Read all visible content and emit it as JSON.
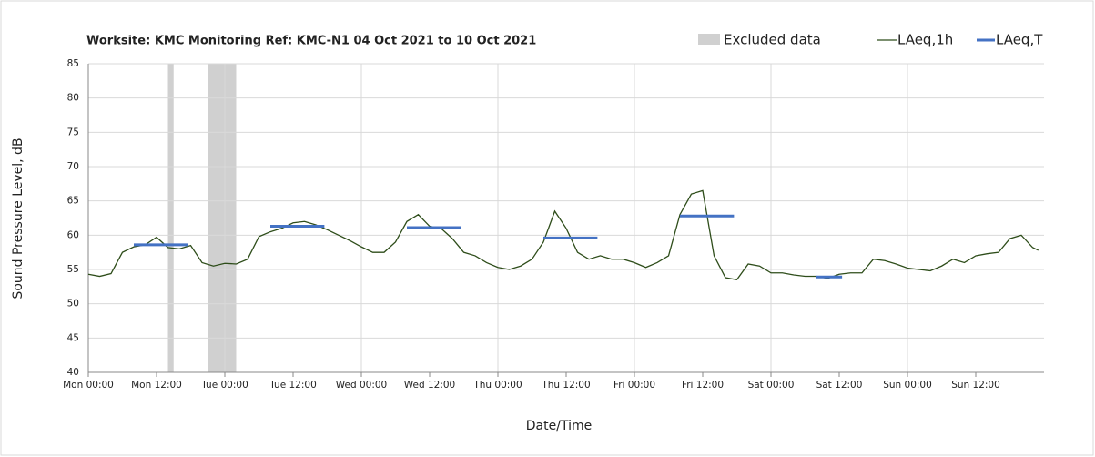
{
  "chart_data": {
    "type": "line",
    "title": "Worksite: KMC    Monitoring Ref: KMC-N1      04 Oct 2021 to 10 Oct 2021",
    "x_label": "Date/Time",
    "y_label": "Sound Pressure Level, dB",
    "xlim": [
      0,
      168
    ],
    "xticks": [
      {
        "value": 0,
        "label": "Mon 00:00"
      },
      {
        "value": 12,
        "label": "Mon 12:00"
      },
      {
        "value": 24,
        "label": "Tue 00:00"
      },
      {
        "value": 36,
        "label": "Tue 12:00"
      },
      {
        "value": 48,
        "label": "Wed 00:00"
      },
      {
        "value": 60,
        "label": "Wed 12:00"
      },
      {
        "value": 72,
        "label": "Thu 00:00"
      },
      {
        "value": 84,
        "label": "Thu 12:00"
      },
      {
        "value": 96,
        "label": "Fri 00:00"
      },
      {
        "value": 108,
        "label": "Fri 12:00"
      },
      {
        "value": 120,
        "label": "Sat 00:00"
      },
      {
        "value": 132,
        "label": "Sat 12:00"
      },
      {
        "value": 144,
        "label": "Sun 00:00"
      },
      {
        "value": 156,
        "label": "Sun 12:00"
      }
    ],
    "ylim": [
      40,
      85
    ],
    "yticks": [
      40,
      45,
      50,
      55,
      60,
      65,
      70,
      75,
      80,
      85
    ],
    "grid": true,
    "excluded": {
      "name": "Excluded data",
      "color": "#d0d0d0",
      "ranges": [
        [
          14,
          15
        ],
        [
          21,
          26
        ]
      ]
    },
    "series": [
      {
        "name": "LAeq,1h",
        "color": "#2e4d1a",
        "x": [
          0,
          2,
          4,
          6,
          8,
          10,
          12,
          14,
          16,
          18,
          20,
          22,
          24,
          26,
          28,
          30,
          32,
          34,
          36,
          38,
          40,
          42,
          44,
          46,
          48,
          50,
          52,
          54,
          56,
          58,
          60,
          62,
          64,
          66,
          68,
          70,
          72,
          74,
          76,
          78,
          80,
          82,
          84,
          86,
          88,
          90,
          92,
          94,
          96,
          98,
          100,
          102,
          104,
          106,
          108,
          110,
          112,
          114,
          116,
          118,
          120,
          122,
          124,
          126,
          128,
          130,
          132,
          134,
          136,
          138,
          140,
          142,
          144,
          146,
          148,
          150,
          152,
          154,
          156,
          158,
          160,
          162,
          164,
          166,
          167
        ],
        "values": [
          54.3,
          54.0,
          54.4,
          57.5,
          58.3,
          58.6,
          59.7,
          58.2,
          58.0,
          58.5,
          56.0,
          55.5,
          55.9,
          55.8,
          56.5,
          59.8,
          60.5,
          61.0,
          61.8,
          62.0,
          61.5,
          60.8,
          60.0,
          59.2,
          58.3,
          57.5,
          57.5,
          59.0,
          62.0,
          63.0,
          61.3,
          61.0,
          59.5,
          57.5,
          57.0,
          56.0,
          55.3,
          55.0,
          55.5,
          56.5,
          59.0,
          63.5,
          61.0,
          57.5,
          56.5,
          57.0,
          56.5,
          56.5,
          56.0,
          55.3,
          56.0,
          57.0,
          63.0,
          66.0,
          66.5,
          57.0,
          53.8,
          53.5,
          55.8,
          55.5,
          54.5,
          54.5,
          54.2,
          54.0,
          54.0,
          53.7,
          54.3,
          54.5,
          54.5,
          56.5,
          56.3,
          55.8,
          55.2,
          55.0,
          54.8,
          55.5,
          56.5,
          56.0,
          57.0,
          57.3,
          57.5,
          59.5,
          60.0,
          58.2,
          57.8
        ]
      }
    ],
    "period_levels": {
      "name": "LAeq,T",
      "color": "#4472c4",
      "segments": [
        {
          "x": [
            8,
            17.5
          ],
          "value": 58.6
        },
        {
          "x": [
            32,
            41.5
          ],
          "value": 61.3
        },
        {
          "x": [
            56,
            65.5
          ],
          "value": 61.1
        },
        {
          "x": [
            80,
            89.5
          ],
          "value": 59.6
        },
        {
          "x": [
            104,
            113.5
          ],
          "value": 62.8
        },
        {
          "x": [
            128,
            132.5
          ],
          "value": 53.9
        }
      ]
    }
  }
}
